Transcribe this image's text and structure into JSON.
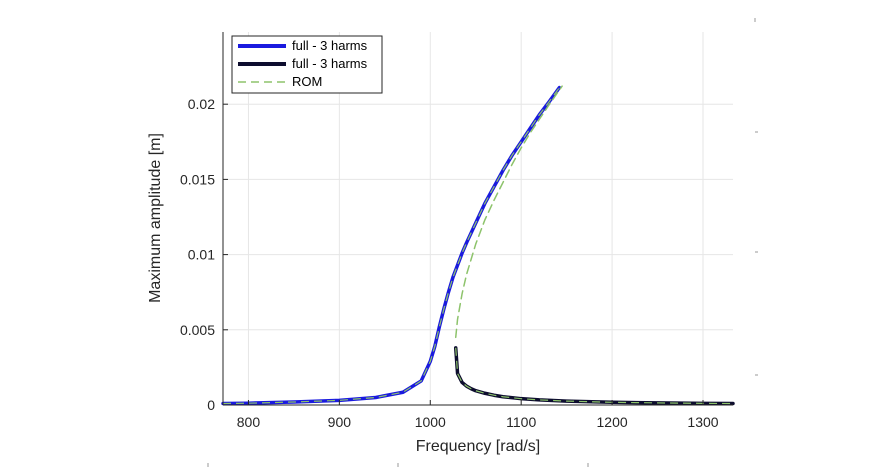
{
  "chart_data": {
    "type": "line",
    "title": "",
    "xlabel": "Frequency [rad/s]",
    "ylabel": "Maximum amplitude [m]",
    "xlim": [
      772,
      1333
    ],
    "ylim": [
      0,
      0.0248
    ],
    "xticks": [
      800,
      900,
      1000,
      1100,
      1200,
      1300
    ],
    "xtick_labels": [
      "800",
      "900",
      "1000",
      "1100",
      "1200",
      "1300"
    ],
    "yticks": [
      0,
      0.005,
      0.01,
      0.015,
      0.02
    ],
    "ytick_labels": [
      "0",
      "0.005",
      "0.01",
      "0.015",
      "0.02"
    ],
    "grid": true,
    "legend_position": "top-left",
    "series": [
      {
        "name": "full - 3 harms",
        "color": "#1a1adf",
        "style": "solid",
        "x": [
          772,
          800,
          850,
          900,
          940,
          970,
          990,
          1000,
          1005,
          1010,
          1015,
          1020,
          1025,
          1030,
          1035,
          1040,
          1050,
          1060,
          1070,
          1080,
          1090,
          1100,
          1110,
          1120,
          1130,
          1142
        ],
        "y": [
          0.0001,
          0.00012,
          0.0002,
          0.00031,
          0.0005,
          0.00085,
          0.0016,
          0.0029,
          0.0039,
          0.0052,
          0.0064,
          0.0075,
          0.0085,
          0.0093,
          0.0101,
          0.0108,
          0.0121,
          0.0134,
          0.0145,
          0.0156,
          0.0166,
          0.0175,
          0.0184,
          0.0193,
          0.0201,
          0.0211
        ]
      },
      {
        "name": "full - 3 harms",
        "color": "#0d0d2e",
        "style": "solid",
        "x": [
          1028,
          1030,
          1035,
          1040,
          1045,
          1050,
          1060,
          1070,
          1080,
          1100,
          1120,
          1150,
          1200,
          1250,
          1300,
          1333
        ],
        "y": [
          0.0038,
          0.0021,
          0.0015,
          0.00125,
          0.00108,
          0.00095,
          0.00078,
          0.00065,
          0.00055,
          0.00042,
          0.00034,
          0.00026,
          0.00018,
          0.00014,
          0.00011,
          0.0001
        ]
      },
      {
        "name": "ROM",
        "color": "#8dc36b",
        "style": "dashed",
        "x": [
          1028,
          1030,
          1035,
          1040,
          1045,
          1050,
          1060,
          1070,
          1080,
          1090,
          1100,
          1110,
          1120,
          1130,
          1145
        ],
        "y": [
          0.0045,
          0.0057,
          0.0074,
          0.0087,
          0.0097,
          0.0107,
          0.0123,
          0.0136,
          0.0148,
          0.016,
          0.0171,
          0.0181,
          0.019,
          0.0199,
          0.0212
        ]
      }
    ]
  }
}
